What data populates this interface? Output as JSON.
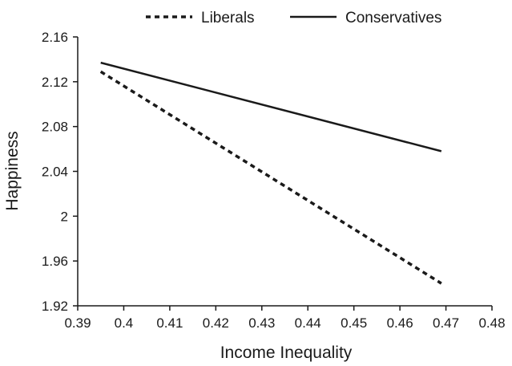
{
  "chart_data": {
    "type": "line",
    "title": "",
    "xlabel": "Income Inequality",
    "ylabel": "Happiness",
    "xlim": [
      0.39,
      0.48
    ],
    "ylim": [
      1.92,
      2.16
    ],
    "x_ticks": [
      "0.39",
      "0.4",
      "0.41",
      "0.42",
      "0.43",
      "0.44",
      "0.45",
      "0.46",
      "0.47",
      "0.48"
    ],
    "y_ticks": [
      "1.92",
      "1.96",
      "2",
      "2.04",
      "2.08",
      "2.12",
      "2.16"
    ],
    "x_tick_values": [
      0.39,
      0.4,
      0.41,
      0.42,
      0.43,
      0.44,
      0.45,
      0.46,
      0.47,
      0.48
    ],
    "y_tick_values": [
      1.92,
      1.96,
      2.0,
      2.04,
      2.08,
      2.12,
      2.16
    ],
    "grid": false,
    "legend_position": "top",
    "series": [
      {
        "name": "Liberals",
        "style": "dashed",
        "color": "#1a1a1a",
        "x": [
          0.395,
          0.469
        ],
        "y": [
          2.129,
          1.94
        ]
      },
      {
        "name": "Conservatives",
        "style": "solid",
        "color": "#1a1a1a",
        "x": [
          0.395,
          0.469
        ],
        "y": [
          2.137,
          2.058
        ]
      }
    ]
  }
}
